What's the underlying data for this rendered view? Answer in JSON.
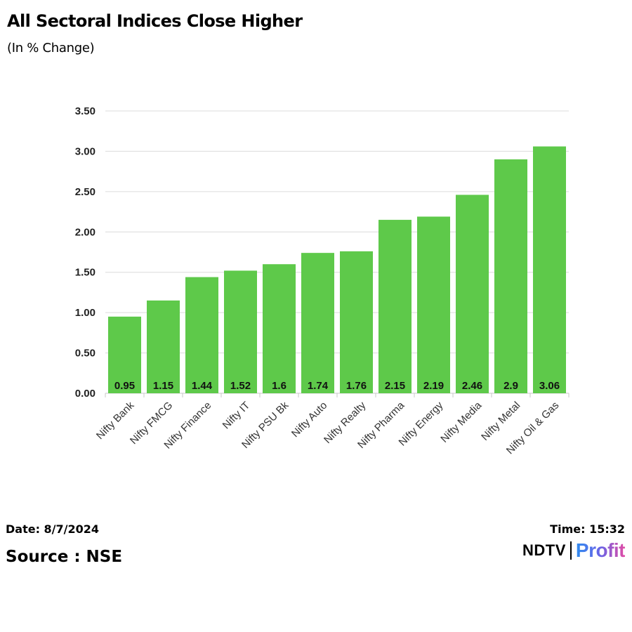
{
  "header": {
    "title": "All Sectoral Indices Close Higher",
    "subtitle": "(In % Change)"
  },
  "chart_data": {
    "type": "bar",
    "title": "All Sectoral Indices Close Higher",
    "subtitle": "(In % Change)",
    "xlabel": "",
    "ylabel": "",
    "categories": [
      "Nifty Bank",
      "Nifty FMCG",
      "Nifty Finance",
      "Nifty IT",
      "Nifty PSU Bk",
      "Nifty Auto",
      "Nifty Realty",
      "Nifty Pharma",
      "Nifty Energy",
      "Nifty Media",
      "Nifty Metal",
      "Nifty Oil & Gas"
    ],
    "values": [
      0.95,
      1.15,
      1.44,
      1.52,
      1.6,
      1.74,
      1.76,
      2.15,
      2.19,
      2.46,
      2.9,
      3.06
    ],
    "value_labels": [
      "0.95",
      "1.15",
      "1.44",
      "1.52",
      "1.6",
      "1.74",
      "1.76",
      "2.15",
      "2.19",
      "2.46",
      "2.9",
      "3.06"
    ],
    "ylim": [
      0,
      3.5
    ],
    "yticks": [
      0,
      0.5,
      1,
      1.5,
      2,
      2.5,
      3,
      3.5
    ],
    "ytick_labels": [
      "0.00",
      "0.50",
      "1.00",
      "1.50",
      "2.00",
      "2.50",
      "3.00",
      "3.50"
    ],
    "grid": true,
    "legend": "none",
    "bar_color": "#5ec94a"
  },
  "footer": {
    "date": "Date: 8/7/2024",
    "time": "Time: 15:32",
    "source": "Source : NSE",
    "logo_left": "NDTV",
    "logo_right": "Profit"
  }
}
